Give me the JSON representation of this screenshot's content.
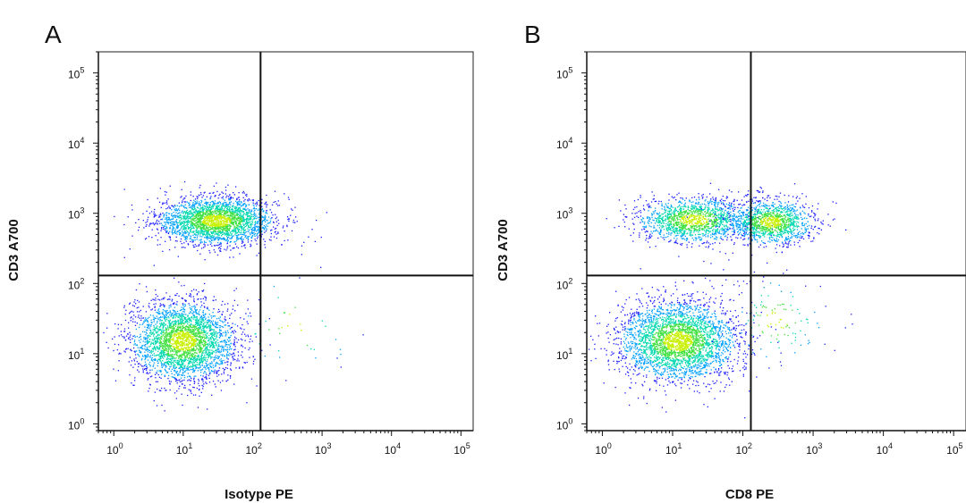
{
  "chart_data": [
    {
      "type": "scatter",
      "panel_label": "A",
      "xlabel": "Isotype PE",
      "ylabel": "CD3 A700",
      "x_scale": "log",
      "y_scale": "log",
      "xlim": [
        0.6,
        150000
      ],
      "ylim": [
        0.8,
        200000
      ],
      "x_tick_labels": [
        {
          "value": 1,
          "base": "10",
          "exp": "0"
        },
        {
          "value": 10,
          "base": "10",
          "exp": "1"
        },
        {
          "value": 100,
          "base": "10",
          "exp": "2"
        },
        {
          "value": 1000,
          "base": "10",
          "exp": "3"
        },
        {
          "value": 10000,
          "base": "10",
          "exp": "4"
        },
        {
          "value": 100000,
          "base": "10",
          "exp": "5"
        }
      ],
      "y_tick_labels": [
        {
          "value": 1,
          "base": "10",
          "exp": "0"
        },
        {
          "value": 10,
          "base": "10",
          "exp": "1"
        },
        {
          "value": 100,
          "base": "10",
          "exp": "2"
        },
        {
          "value": 1000,
          "base": "10",
          "exp": "3"
        },
        {
          "value": 10000,
          "base": "10",
          "exp": "4"
        },
        {
          "value": 100000,
          "base": "10",
          "exp": "5"
        }
      ],
      "quadrant_gates": {
        "x": 130,
        "y": 130
      },
      "populations": [
        {
          "name": "upper-left",
          "center_x": 30,
          "center_y": 780,
          "spread_x_decades": 0.42,
          "spread_y_decades": 0.17,
          "count": 2600
        },
        {
          "name": "lower-left",
          "center_x": 10,
          "center_y": 15,
          "spread_x_decades": 0.38,
          "spread_y_decades": 0.28,
          "count": 3000
        },
        {
          "name": "sparse-events",
          "center_x": 400,
          "center_y": 25,
          "spread_x_decades": 0.45,
          "spread_y_decades": 0.35,
          "count": 40
        }
      ],
      "density_colors": [
        "#1a1aff",
        "#00a0ff",
        "#00d8b0",
        "#40e040",
        "#c8f000"
      ],
      "grid": false,
      "legend": "none"
    },
    {
      "type": "scatter",
      "panel_label": "B",
      "xlabel": "CD8 PE",
      "ylabel": "CD3 A700",
      "x_scale": "log",
      "y_scale": "log",
      "xlim": [
        0.6,
        150000
      ],
      "ylim": [
        0.8,
        200000
      ],
      "x_tick_labels": [
        {
          "value": 1,
          "base": "10",
          "exp": "0"
        },
        {
          "value": 10,
          "base": "10",
          "exp": "1"
        },
        {
          "value": 100,
          "base": "10",
          "exp": "2"
        },
        {
          "value": 1000,
          "base": "10",
          "exp": "3"
        },
        {
          "value": 10000,
          "base": "10",
          "exp": "4"
        },
        {
          "value": 100000,
          "base": "10",
          "exp": "5"
        }
      ],
      "y_tick_labels": [
        {
          "value": 1,
          "base": "10",
          "exp": "0"
        },
        {
          "value": 10,
          "base": "10",
          "exp": "1"
        },
        {
          "value": 100,
          "base": "10",
          "exp": "2"
        },
        {
          "value": 1000,
          "base": "10",
          "exp": "3"
        },
        {
          "value": 10000,
          "base": "10",
          "exp": "4"
        },
        {
          "value": 100000,
          "base": "10",
          "exp": "5"
        }
      ],
      "quadrant_gates": {
        "x": 130,
        "y": 130
      },
      "populations": [
        {
          "name": "upper-left",
          "center_x": 20,
          "center_y": 800,
          "spread_x_decades": 0.4,
          "spread_y_decades": 0.16,
          "count": 1500
        },
        {
          "name": "upper-right",
          "center_x": 250,
          "center_y": 750,
          "spread_x_decades": 0.3,
          "spread_y_decades": 0.16,
          "count": 1300
        },
        {
          "name": "lower-left",
          "center_x": 12,
          "center_y": 15,
          "spread_x_decades": 0.42,
          "spread_y_decades": 0.28,
          "count": 3200
        },
        {
          "name": "lower-right-sparse",
          "center_x": 300,
          "center_y": 30,
          "spread_x_decades": 0.35,
          "spread_y_decades": 0.3,
          "count": 120
        }
      ],
      "density_colors": [
        "#1a1aff",
        "#00a0ff",
        "#00d8b0",
        "#40e040",
        "#c8f000"
      ],
      "grid": false,
      "legend": "none"
    }
  ]
}
